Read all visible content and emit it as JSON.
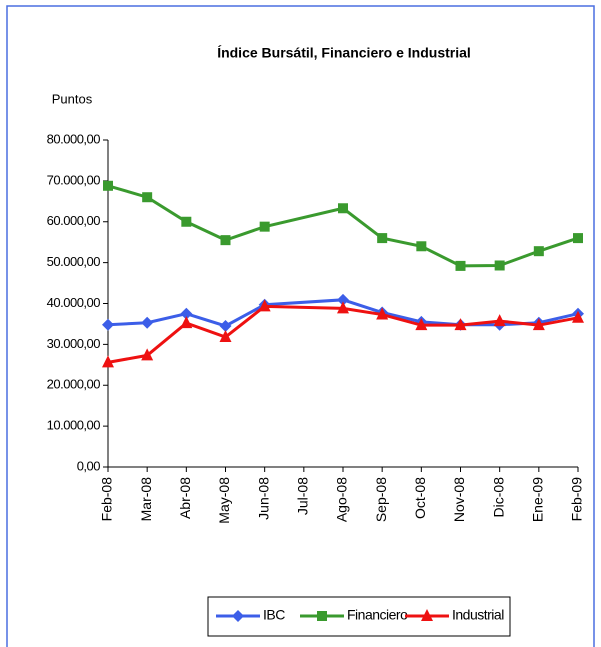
{
  "chart_data": {
    "type": "line",
    "title": "Índice Bursátil, Financiero e Industrial",
    "y_label": "Puntos",
    "categories": [
      "Feb-08",
      "Mar-08",
      "Abr-08",
      "May-08",
      "Jun-08",
      "Jul-08",
      "Ago-08",
      "Sep-08",
      "Oct-08",
      "Nov-08",
      "Dic-08",
      "Ene-09",
      "Feb-09"
    ],
    "connect_gaps": true,
    "series": [
      {
        "name": "IBC",
        "color": "#3c5ee8",
        "marker": "diamond",
        "values": [
          34800,
          35300,
          37500,
          34500,
          39700,
          null,
          40900,
          37800,
          35500,
          34800,
          34800,
          35300,
          37500
        ]
      },
      {
        "name": "Financiero",
        "color": "#3a9a2e",
        "marker": "square",
        "values": [
          68800,
          66000,
          60000,
          55500,
          58800,
          null,
          63300,
          56000,
          54000,
          49200,
          49300,
          52800,
          56000
        ]
      },
      {
        "name": "Industrial",
        "color": "#ee1111",
        "marker": "triangle",
        "values": [
          25600,
          27300,
          35200,
          31800,
          39300,
          null,
          38800,
          37300,
          34700,
          34700,
          35700,
          34700,
          36500
        ]
      }
    ],
    "ylim": [
      0,
      80000
    ],
    "yticks": [
      {
        "value": 0,
        "label": "0,00"
      },
      {
        "value": 10000,
        "label": "10.000,00"
      },
      {
        "value": 20000,
        "label": "20.000,00"
      },
      {
        "value": 30000,
        "label": "30.000,00"
      },
      {
        "value": 40000,
        "label": "40.000,00"
      },
      {
        "value": 50000,
        "label": "50.000,00"
      },
      {
        "value": 60000,
        "label": "60.000,00"
      },
      {
        "value": 70000,
        "label": "70.000,00"
      },
      {
        "value": 80000,
        "label": "80.000,00"
      }
    ],
    "legend": "bottom"
  }
}
